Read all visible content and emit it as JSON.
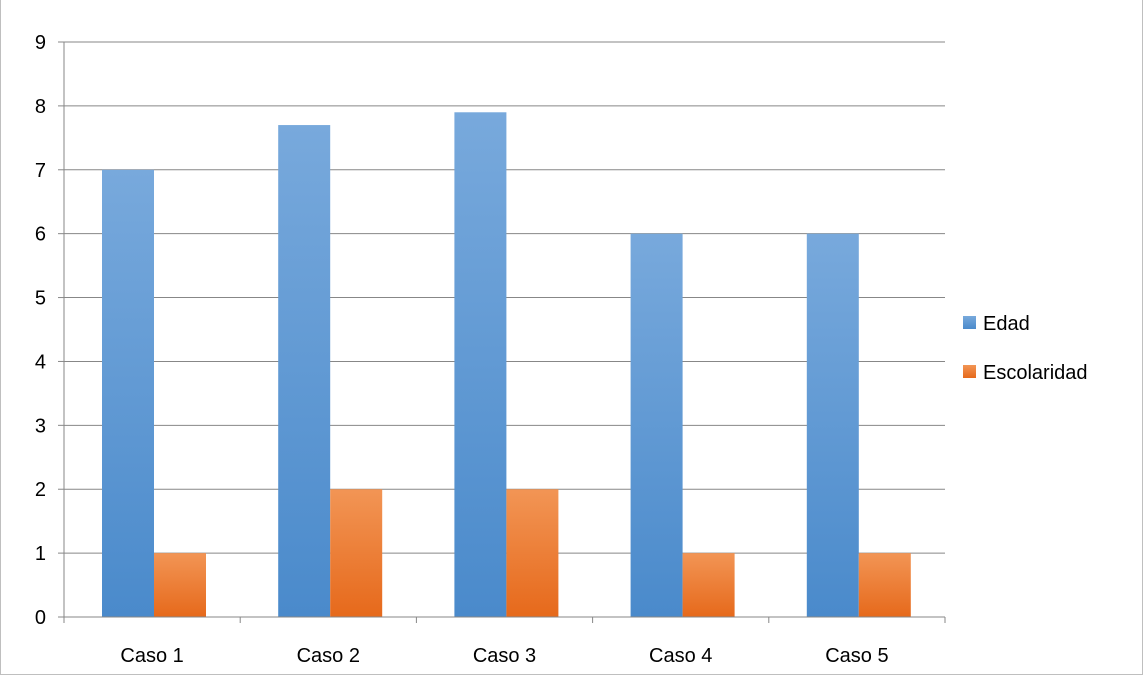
{
  "chart_data": {
    "type": "bar",
    "categories": [
      "Caso 1",
      "Caso 2",
      "Caso 3",
      "Caso 4",
      "Caso 5"
    ],
    "series": [
      {
        "name": "Edad",
        "values": [
          7,
          7.7,
          7.9,
          6,
          6
        ],
        "color": "#5B9BD5"
      },
      {
        "name": "Escolaridad",
        "values": [
          1,
          2,
          2,
          1,
          1
        ],
        "color": "#ED7D31"
      }
    ],
    "title": "",
    "xlabel": "",
    "ylabel": "",
    "ylim": [
      0,
      9
    ],
    "yticks": [
      "0",
      "1",
      "2",
      "3",
      "4",
      "5",
      "6",
      "7",
      "8",
      "9"
    ],
    "grid": true,
    "legend": "right"
  }
}
